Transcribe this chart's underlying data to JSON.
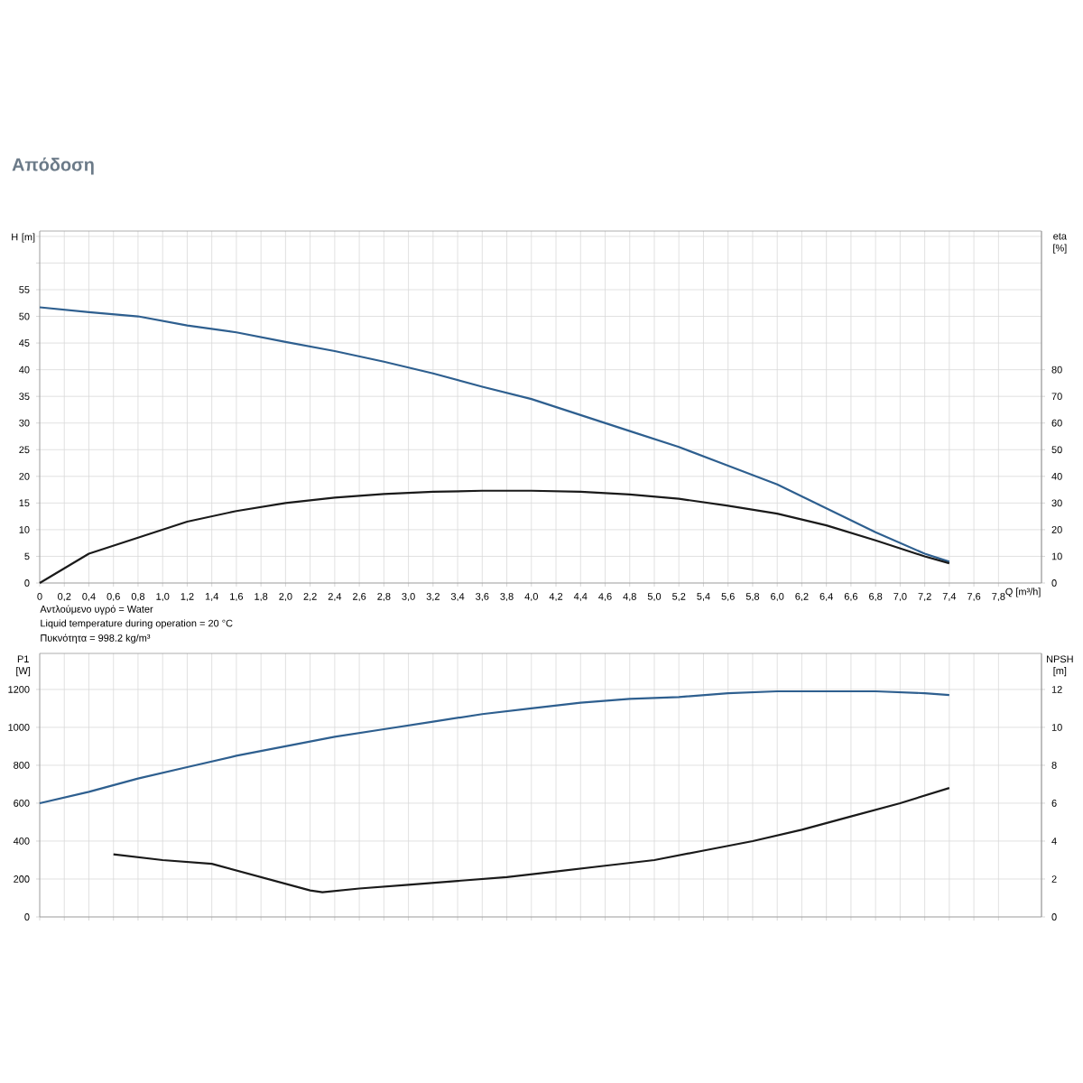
{
  "chart_data": [
    {
      "type": "line",
      "title": "Απόδοση",
      "xlabel": "Q [m³/h]",
      "ylabel": "H [m]",
      "y2label": "eta [%]",
      "annotations": [
        "Αντλούμενο υγρό = Water",
        "Liquid temperature during operation = 20 °C",
        "Πυκνότητα = 998.2 kg/m³"
      ],
      "x": [
        0,
        0.4,
        0.8,
        1.2,
        1.6,
        2.0,
        2.4,
        2.8,
        3.2,
        3.6,
        4.0,
        4.4,
        4.8,
        5.2,
        5.6,
        6.0,
        6.4,
        6.8,
        7.2,
        7.4
      ],
      "series": [
        {
          "color": "#2e5f8f",
          "values": [
            51.7,
            50.8,
            50.0,
            48.3,
            47,
            45.2,
            43.5,
            41.5,
            39.3,
            36.8,
            34.5,
            31.5,
            28.5,
            25.5,
            22,
            18.5,
            14,
            9.5,
            5.5,
            4
          ]
        },
        {
          "color": "#1a1a1a",
          "axis": "y2",
          "values": [
            0,
            11,
            17,
            23,
            27,
            30,
            32,
            33.4,
            34.2,
            34.6,
            34.6,
            34.2,
            33.2,
            31.6,
            29,
            26,
            21.6,
            16,
            10,
            7.4
          ]
        }
      ],
      "xlim": [
        0,
        8.15
      ],
      "xticks": [
        0,
        {
          "value": 0.2,
          "label": "0,2"
        },
        {
          "value": 0.4,
          "label": "0,4"
        },
        {
          "value": 0.6,
          "label": "0,6"
        },
        {
          "value": 0.8,
          "label": "0,8"
        },
        {
          "value": 1.0,
          "label": "1,0"
        },
        {
          "value": 1.2,
          "label": "1,2"
        },
        {
          "value": 1.4,
          "label": "1,4"
        },
        {
          "value": 1.6,
          "label": "1,6"
        },
        {
          "value": 1.8,
          "label": "1,8"
        },
        {
          "value": 2.0,
          "label": "2,0"
        },
        {
          "value": 2.2,
          "label": "2,2"
        },
        {
          "value": 2.4,
          "label": "2,4"
        },
        {
          "value": 2.6,
          "label": "2,6"
        },
        {
          "value": 2.8,
          "label": "2,8"
        },
        {
          "value": 3.0,
          "label": "3,0"
        },
        {
          "value": 3.2,
          "label": "3,2"
        },
        {
          "value": 3.4,
          "label": "3,4"
        },
        {
          "value": 3.6,
          "label": "3,6"
        },
        {
          "value": 3.8,
          "label": "3,8"
        },
        {
          "value": 4.0,
          "label": "4,0"
        },
        {
          "value": 4.2,
          "label": "4,2"
        },
        {
          "value": 4.4,
          "label": "4,4"
        },
        {
          "value": 4.6,
          "label": "4,6"
        },
        {
          "value": 4.8,
          "label": "4,8"
        },
        {
          "value": 5.0,
          "label": "5,0"
        },
        {
          "value": 5.2,
          "label": "5,2"
        },
        {
          "value": 5.4,
          "label": "5,4"
        },
        {
          "value": 5.6,
          "label": "5,6"
        },
        {
          "value": 5.8,
          "label": "5,8"
        },
        {
          "value": 6.0,
          "label": "6,0"
        },
        {
          "value": 6.2,
          "label": "6,2"
        },
        {
          "value": 6.4,
          "label": "6,4"
        },
        {
          "value": 6.6,
          "label": "6,6"
        },
        {
          "value": 6.8,
          "label": "6,8"
        },
        {
          "value": 7.0,
          "label": "7,0"
        },
        {
          "value": 7.2,
          "label": "7,2"
        },
        {
          "value": 7.4,
          "label": "7,4"
        },
        {
          "value": 7.6,
          "label": "7,6"
        },
        {
          "value": 7.8,
          "label": "7,8"
        }
      ],
      "ylim": [
        0,
        66
      ],
      "yticks": [
        0,
        5,
        10,
        15,
        20,
        25,
        30,
        35,
        40,
        45,
        50,
        55,
        {
          "value": 60,
          "label": null
        },
        {
          "value": 65,
          "label": null
        }
      ],
      "y2lim": [
        0,
        132
      ],
      "y2ticks": [
        0,
        10,
        20,
        30,
        40,
        50,
        60,
        70,
        80
      ],
      "grid": true,
      "marker": "none",
      "line_style": "solid"
    },
    {
      "type": "line",
      "ylabel": "P1 [W]",
      "y2label": "NPSH [m]",
      "x": [
        0,
        0.4,
        0.8,
        1.2,
        1.6,
        2.0,
        2.4,
        2.8,
        3.2,
        3.6,
        4.0,
        4.4,
        4.8,
        5.2,
        5.6,
        6.0,
        6.4,
        6.8,
        7.2,
        7.4
      ],
      "series": [
        {
          "color": "#2e5f8f",
          "values": [
            600,
            660,
            730,
            790,
            850,
            900,
            950,
            990,
            1030,
            1070,
            1100,
            1130,
            1150,
            1160,
            1180,
            1190,
            1190,
            1190,
            1180,
            1170
          ]
        },
        {
          "color": "#1a1a1a",
          "axis": "y2",
          "x": [
            0.6,
            1.0,
            1.4,
            1.8,
            2.2,
            2.3,
            2.6,
            3.0,
            3.4,
            3.8,
            4.2,
            4.6,
            5.0,
            5.4,
            5.8,
            6.2,
            6.6,
            7.0,
            7.4
          ],
          "values": [
            3.3,
            3.0,
            2.8,
            2.1,
            1.4,
            1.3,
            1.5,
            1.7,
            1.9,
            2.1,
            2.4,
            2.7,
            3.0,
            3.5,
            4.0,
            4.6,
            5.3,
            6.0,
            6.8
          ]
        }
      ],
      "xlim": [
        0,
        8.15
      ],
      "xticks": [
        0,
        0.2,
        0.4,
        0.6,
        0.8,
        1.0,
        1.2,
        1.4,
        1.6,
        1.8,
        2.0,
        2.2,
        2.4,
        2.6,
        2.8,
        3.0,
        3.2,
        3.4,
        3.6,
        3.8,
        4.0,
        4.2,
        4.4,
        4.6,
        4.8,
        5.0,
        5.2,
        5.4,
        5.6,
        5.8,
        6.0,
        6.2,
        6.4,
        6.6,
        6.8,
        7.0,
        7.2,
        7.4,
        7.6,
        7.8
      ],
      "ylim": [
        0,
        1390
      ],
      "yticks": [
        0,
        200,
        400,
        600,
        800,
        1000,
        1200
      ],
      "y2lim": [
        0,
        13.9
      ],
      "y2ticks": [
        0,
        2,
        4,
        6,
        8,
        10,
        12
      ],
      "tick_labels": "y",
      "grid": true,
      "marker": "none",
      "line_style": "solid"
    }
  ]
}
